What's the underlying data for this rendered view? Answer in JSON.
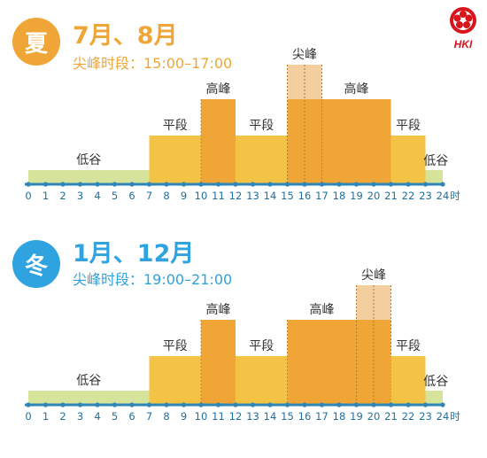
{
  "logo": {
    "text": "HKI",
    "color": "#d8141c"
  },
  "colors": {
    "low": "#d6e39a",
    "mid": "#f2c344",
    "high": "#f0a637",
    "peak": "#f3cfa0",
    "axis": "#2e86b8",
    "tick_label": "#1f6fa0",
    "band_label": "#333333",
    "summer_accent": "#f0a637",
    "winter_accent": "#2fa3df"
  },
  "unit_label": "时",
  "summer": {
    "badge": "夏",
    "title": "7月、8月",
    "subtitle": "尖峰时段：15:00–17:00"
  },
  "winter": {
    "badge": "冬",
    "title": "1月、12月",
    "subtitle": "尖峰时段：19:00–21:00"
  },
  "chart_data": [
    {
      "type": "bar",
      "name": "summer",
      "x_ticks": [
        "0",
        "1",
        "2",
        "3",
        "4",
        "5",
        "6",
        "7",
        "8",
        "9",
        "10",
        "11",
        "12",
        "13",
        "14",
        "15",
        "16",
        "17",
        "18",
        "19",
        "20",
        "21",
        "22",
        "23",
        "24"
      ],
      "level_order": [
        "低谷",
        "平段",
        "高峰",
        "尖峰"
      ],
      "segments": [
        {
          "start": 0,
          "end": 7,
          "level": "低谷",
          "label": "低谷"
        },
        {
          "start": 7,
          "end": 10,
          "level": "平段",
          "label": "平段"
        },
        {
          "start": 10,
          "end": 12,
          "level": "高峰",
          "label": "高峰"
        },
        {
          "start": 12,
          "end": 15,
          "level": "平段",
          "label": "平段"
        },
        {
          "start": 15,
          "end": 17,
          "level": "尖峰",
          "label": "尖峰"
        },
        {
          "start": 17,
          "end": 21,
          "level": "高峰",
          "label": "高峰"
        },
        {
          "start": 21,
          "end": 23,
          "level": "平段",
          "label": "平段"
        },
        {
          "start": 23,
          "end": 24,
          "level": "低谷",
          "label": "低谷"
        }
      ]
    },
    {
      "type": "bar",
      "name": "winter",
      "x_ticks": [
        "0",
        "1",
        "2",
        "3",
        "4",
        "5",
        "6",
        "7",
        "8",
        "9",
        "10",
        "11",
        "12",
        "13",
        "14",
        "15",
        "16",
        "17",
        "18",
        "19",
        "20",
        "21",
        "22",
        "23",
        "24"
      ],
      "level_order": [
        "低谷",
        "平段",
        "高峰",
        "尖峰"
      ],
      "segments": [
        {
          "start": 0,
          "end": 7,
          "level": "低谷",
          "label": "低谷"
        },
        {
          "start": 7,
          "end": 10,
          "level": "平段",
          "label": "平段"
        },
        {
          "start": 10,
          "end": 12,
          "level": "高峰",
          "label": "高峰"
        },
        {
          "start": 12,
          "end": 15,
          "level": "平段",
          "label": "平段"
        },
        {
          "start": 15,
          "end": 19,
          "level": "高峰",
          "label": "高峰"
        },
        {
          "start": 19,
          "end": 21,
          "level": "尖峰",
          "label": "尖峰"
        },
        {
          "start": 21,
          "end": 23,
          "level": "平段",
          "label": "平段"
        },
        {
          "start": 23,
          "end": 24,
          "level": "低谷",
          "label": "低谷"
        }
      ]
    }
  ]
}
